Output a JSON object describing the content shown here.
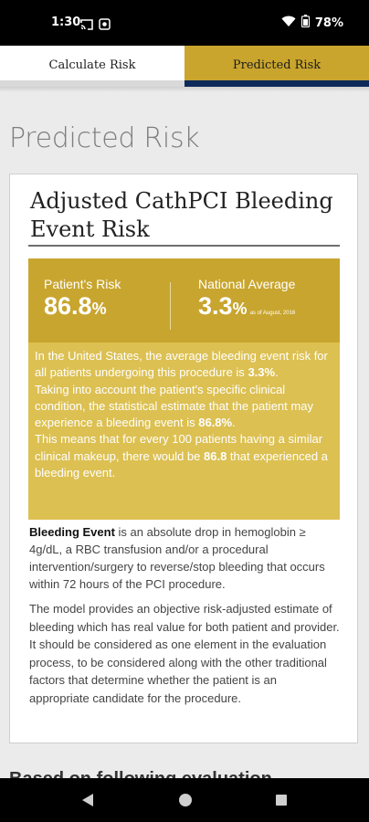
{
  "status_bar": {
    "time": "1:30",
    "battery": "78%"
  },
  "tabs": [
    {
      "label": "Calculate Risk",
      "active": false
    },
    {
      "label": "Predicted Risk",
      "active": true
    }
  ],
  "page_title": "Predicted Risk",
  "card": {
    "title": "Adjusted CathPCI Bleeding Event Risk",
    "patient_risk": {
      "label": "Patient's Risk",
      "value": "86.8",
      "unit": "%"
    },
    "national_average": {
      "label": "National Average",
      "value": "3.3",
      "unit": "%",
      "as_of": "as of August, 2016"
    },
    "explanation": {
      "p1_a": "In the United States, the average bleeding event risk for all patients undergoing this procedure is ",
      "p1_b": "3.3%",
      "p1_c": ".",
      "p2_a": "Taking into account the patient's specific clinical condition, the statistical estimate that the patient may experience a bleeding event is ",
      "p2_b": "86.8%",
      "p2_c": ".",
      "p3_a": "This means that for every 100 patients having a similar clinical makeup, there would be ",
      "p3_b": "86.8",
      "p3_c": " that experienced a bleeding event."
    },
    "definition_term": "Bleeding Event",
    "definition_text": " is an absolute drop in hemoglobin ≥ 4g/dL, a RBC transfusion and/or a procedural intervention/surgery to reverse/stop bleeding that occurs within 72 hours of the PCI procedure.",
    "model_text": "The model provides an objective risk-adjusted estimate of bleeding which has real value for both patient and provider. It should be considered as one element in the evaluation process, to be considered along with the other traditional factors that determine whether the patient is an appropriate candidate for the procedure."
  },
  "next_heading": "Based on following evaluation",
  "icons": {
    "status": [
      "cast-icon",
      "screen-record-icon",
      "wifi-icon",
      "battery-icon"
    ],
    "nav": [
      "back-icon",
      "home-icon",
      "recents-icon"
    ]
  },
  "colors": {
    "gold_dark": "#c8a52e",
    "gold_light": "#dcc052",
    "navy": "#0d2a5a"
  }
}
